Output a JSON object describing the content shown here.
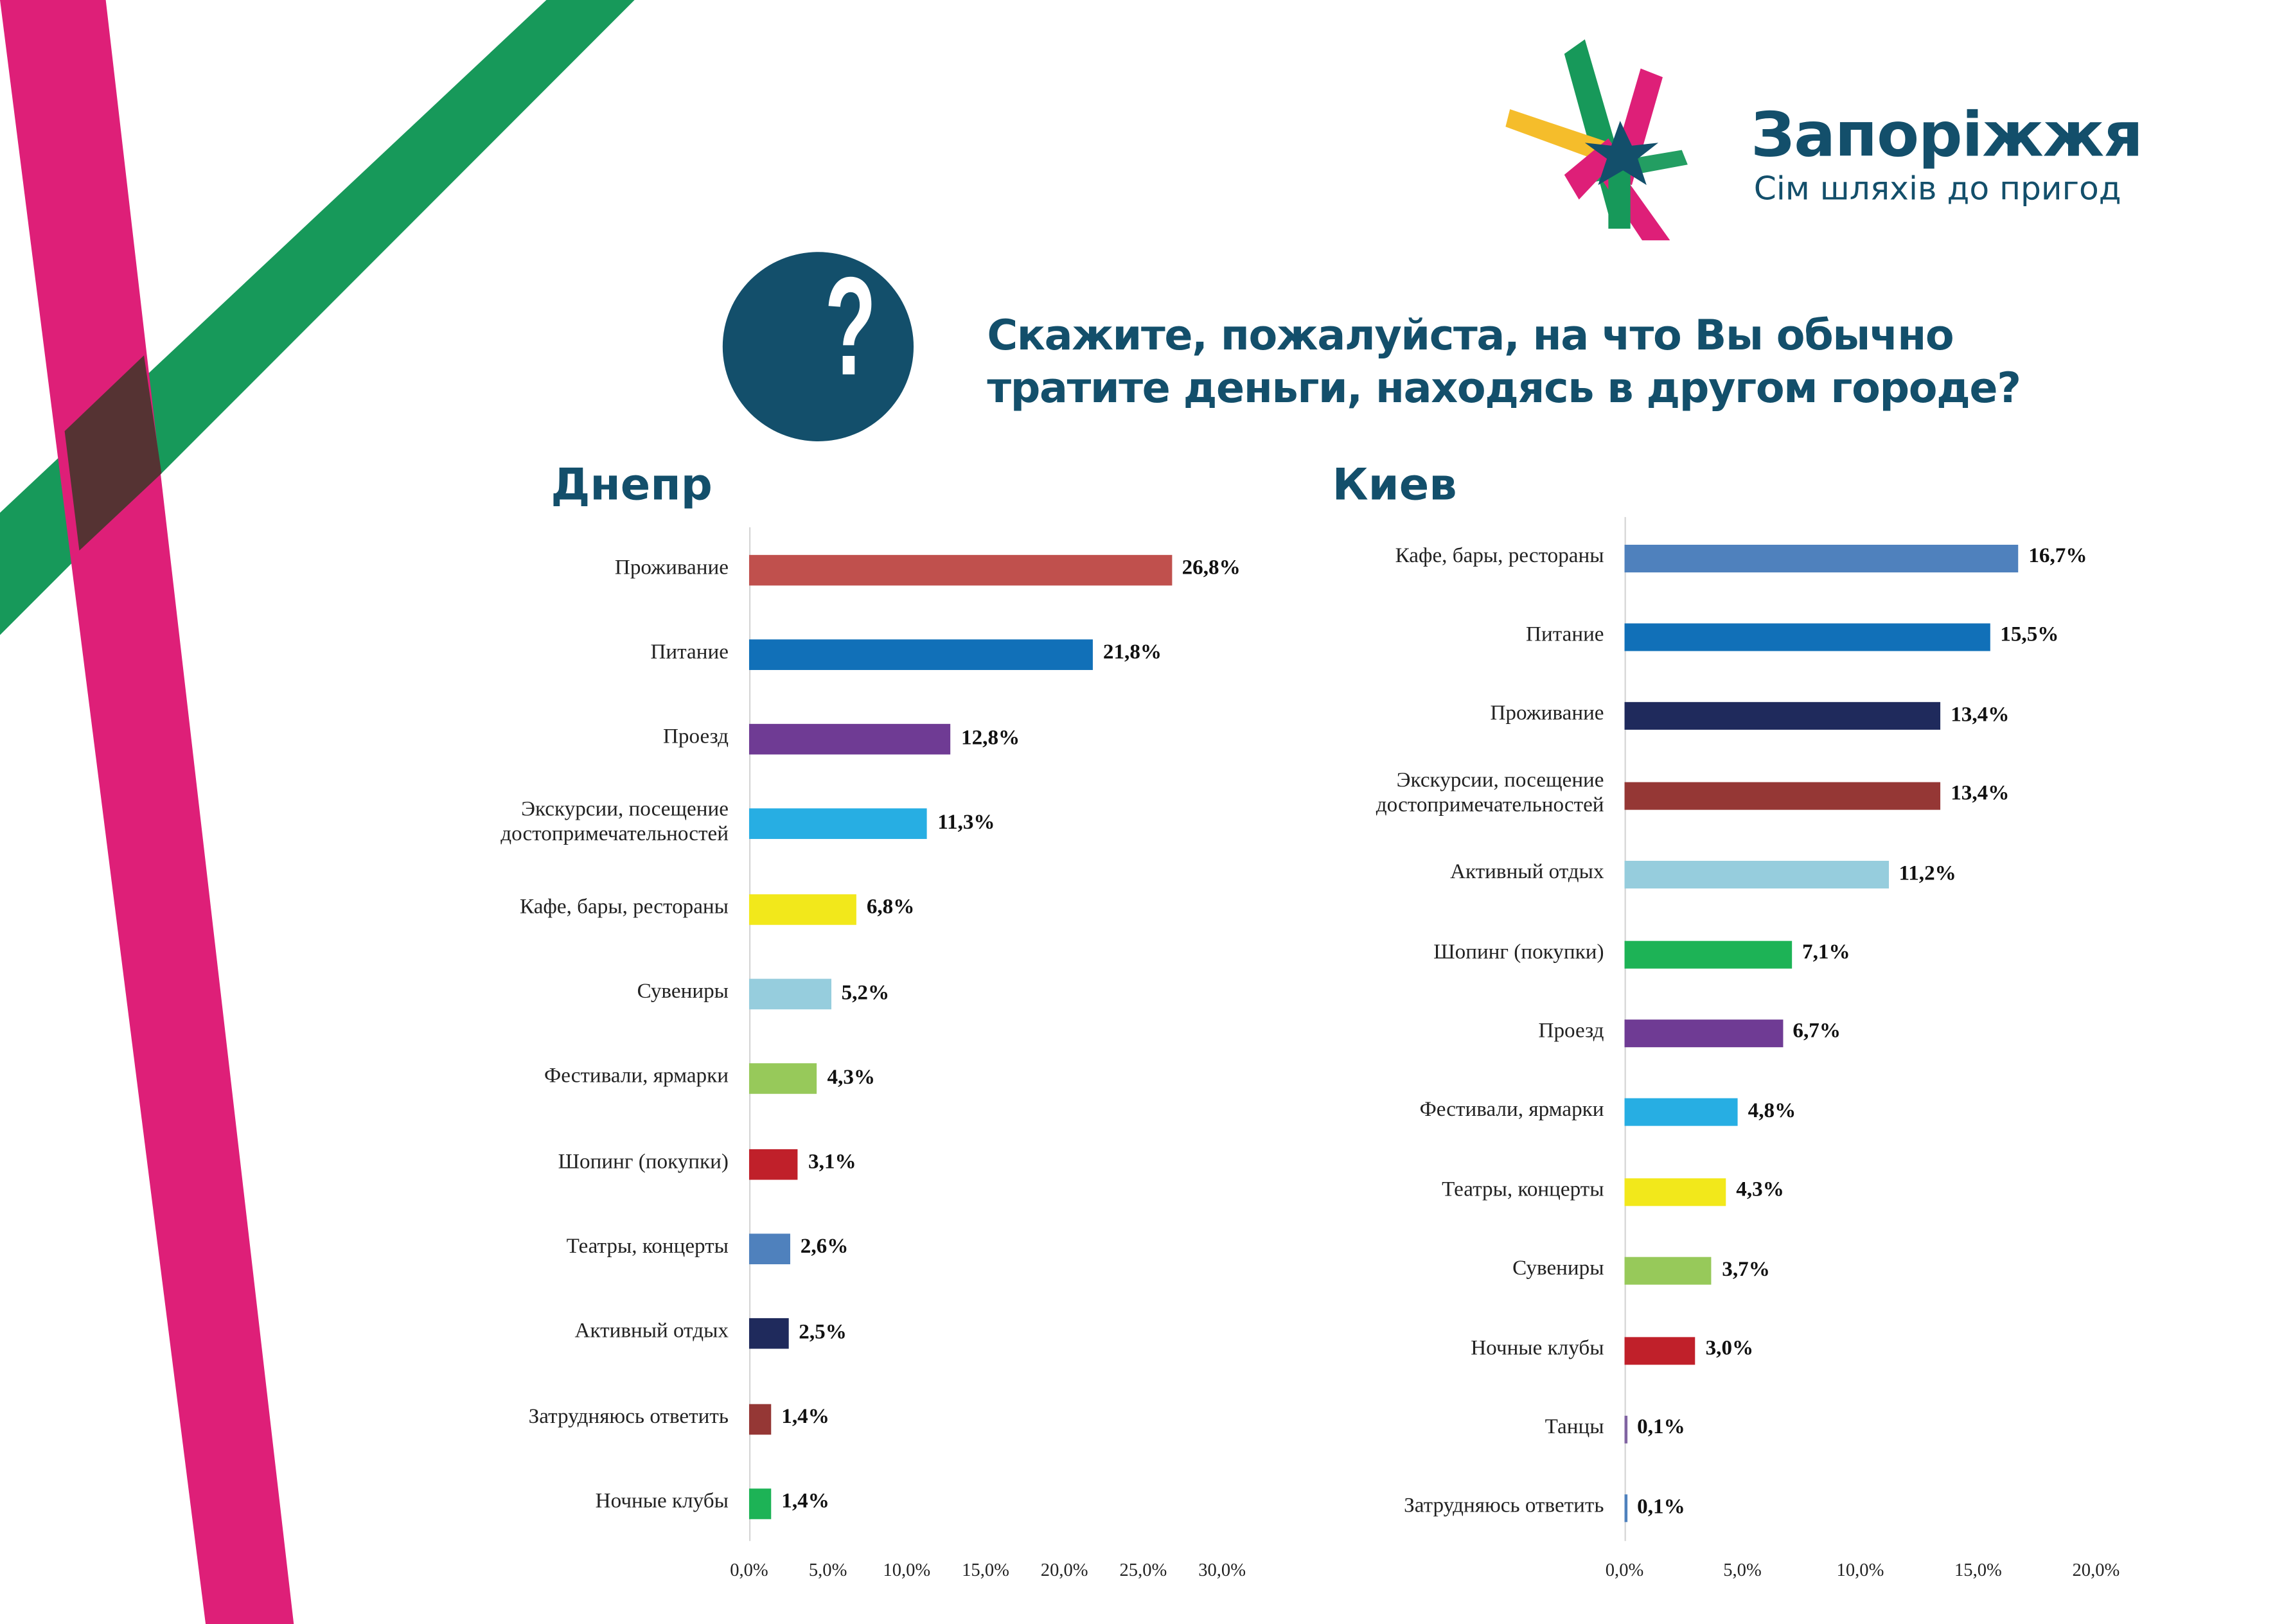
{
  "brand": {
    "name": "Запоріжжя",
    "slogan": "Сім шляхів до пригод",
    "colors": {
      "navy": "#134f6b",
      "green": "#17995a",
      "pink": "#de1f78",
      "yellow": "#f5bd2b"
    }
  },
  "question": {
    "icon": "question-mark-icon",
    "line1": "Скажите, пожалуйста, на что Вы обычно",
    "line2": "тратите деньги, находясь в другом городе?"
  },
  "chart_data": [
    {
      "type": "bar",
      "orientation": "horizontal",
      "title": "Днепр",
      "xlabel": "",
      "ylabel": "",
      "xlim": [
        0,
        30
      ],
      "ticks": [
        "0,0%",
        "5,0%",
        "10,0%",
        "15,0%",
        "20,0%",
        "25,0%",
        "30,0%"
      ],
      "tick_values": [
        0,
        5,
        10,
        15,
        20,
        25,
        30
      ],
      "grid": false,
      "categories": [
        "Проживание",
        "Питание",
        "Проезд",
        "Экскурсии, посещение достопримечательностей",
        "Кафе, бары, рестораны",
        "Сувениры",
        "Фестивали, ярмарки",
        "Шопинг (покупки)",
        "Театры, концерты",
        "Активный отдых",
        "Затрудняюсь ответить",
        "Ночные клубы"
      ],
      "category_lines": [
        [
          "Проживание"
        ],
        [
          "Питание"
        ],
        [
          "Проезд"
        ],
        [
          "Экскурсии, посещение",
          "достопримечательностей"
        ],
        [
          "Кафе, бары, рестораны"
        ],
        [
          "Сувениры"
        ],
        [
          "Фестивали, ярмарки"
        ],
        [
          "Шопинг (покупки)"
        ],
        [
          "Театры, концерты"
        ],
        [
          "Активный отдых"
        ],
        [
          "Затрудняюсь ответить"
        ],
        [
          "Ночные клубы"
        ]
      ],
      "values": [
        26.8,
        21.8,
        12.8,
        11.3,
        6.8,
        5.2,
        4.3,
        3.1,
        2.6,
        2.5,
        1.4,
        1.4
      ],
      "labels": [
        "26,8%",
        "21,8%",
        "12,8%",
        "11,3%",
        "6,8%",
        "5,2%",
        "4,3%",
        "3,1%",
        "2,6%",
        "2,5%",
        "1,4%",
        "1,4%"
      ],
      "colors": [
        "#c0504d",
        "#1170b8",
        "#6f3b94",
        "#27aee3",
        "#f2e81b",
        "#96cddd",
        "#97c95a",
        "#c0202a",
        "#4f81bd",
        "#1f2a5c",
        "#953735",
        "#1db356"
      ]
    },
    {
      "type": "bar",
      "orientation": "horizontal",
      "title": "Киев",
      "xlabel": "",
      "ylabel": "",
      "xlim": [
        0,
        20
      ],
      "ticks": [
        "0,0%",
        "5,0%",
        "10,0%",
        "15,0%",
        "20,0%"
      ],
      "tick_values": [
        0,
        5,
        10,
        15,
        20
      ],
      "grid": false,
      "categories": [
        "Кафе, бары, рестораны",
        "Питание",
        "Проживание",
        "Экскурсии, посещение достопримечательностей",
        "Активный отдых",
        "Шопинг (покупки)",
        "Проезд",
        "Фестивали, ярмарки",
        "Театры, концерты",
        "Сувениры",
        "Ночные клубы",
        "Танцы",
        "Затрудняюсь ответить"
      ],
      "category_lines": [
        [
          "Кафе, бары, рестораны"
        ],
        [
          "Питание"
        ],
        [
          "Проживание"
        ],
        [
          "Экскурсии, посещение",
          "достопримечательностей"
        ],
        [
          "Активный отдых"
        ],
        [
          "Шопинг (покупки)"
        ],
        [
          "Проезд"
        ],
        [
          "Фестивали, ярмарки"
        ],
        [
          "Театры, концерты"
        ],
        [
          "Сувениры"
        ],
        [
          "Ночные клубы"
        ],
        [
          "Танцы"
        ],
        [
          "Затрудняюсь ответить"
        ]
      ],
      "values": [
        16.7,
        15.5,
        13.4,
        13.4,
        11.2,
        7.1,
        6.7,
        4.8,
        4.3,
        3.7,
        3.0,
        0.1,
        0.1
      ],
      "labels": [
        "16,7%",
        "15,5%",
        "13,4%",
        "13,4%",
        "11,2%",
        "7,1%",
        "6,7%",
        "4,8%",
        "4,3%",
        "3,7%",
        "3,0%",
        "0,1%",
        "0,1%"
      ],
      "colors": [
        "#4f81bd",
        "#1170b8",
        "#1f2a5c",
        "#953735",
        "#96cddd",
        "#1db356",
        "#6f3b94",
        "#27aee3",
        "#f2e81b",
        "#97c95a",
        "#c0202a",
        "#8064a2",
        "#4f81bd"
      ]
    }
  ]
}
